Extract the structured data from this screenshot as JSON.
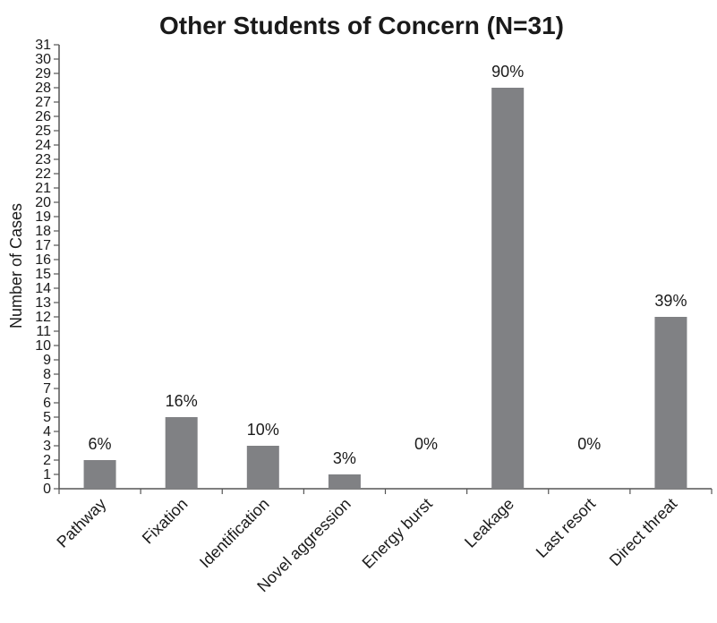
{
  "chart_data": {
    "type": "bar",
    "title": "Other Students of Concern  (N=31)",
    "xlabel": "",
    "ylabel": "Number of Cases",
    "ylim": [
      0,
      31
    ],
    "yticks": [
      0,
      1,
      2,
      3,
      4,
      5,
      6,
      7,
      8,
      9,
      10,
      11,
      12,
      13,
      14,
      15,
      16,
      17,
      18,
      19,
      20,
      21,
      22,
      23,
      24,
      25,
      26,
      27,
      28,
      29,
      30,
      31
    ],
    "categories": [
      "Pathway",
      "Fixation",
      "Identification",
      "Novel aggression",
      "Energy burst",
      "Leakage",
      "Last resort",
      "Direct threat"
    ],
    "values": [
      2,
      5,
      3,
      1,
      0,
      28,
      0,
      12
    ],
    "data_labels": [
      "6%",
      "16%",
      "10%",
      "3%",
      "0%",
      "90%",
      "0%",
      "39%"
    ],
    "bar_color": "#808184",
    "grid": false,
    "legend": "none"
  }
}
